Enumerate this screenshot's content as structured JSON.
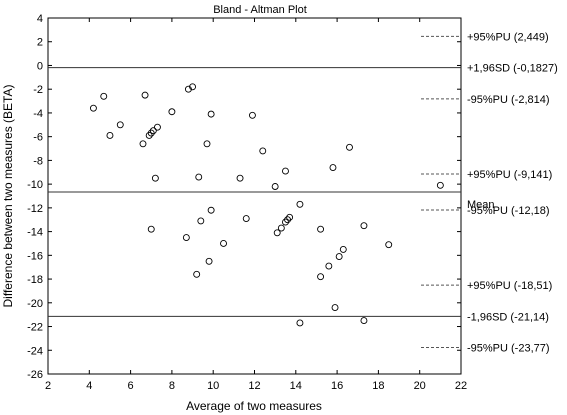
{
  "chart_data": {
    "type": "scatter",
    "title": "Bland - Altman Plot",
    "xlabel": "Average of two measures",
    "ylabel": "Difference between two measures (BETA)",
    "xlim": [
      2,
      22
    ],
    "ylim": [
      -26,
      4
    ],
    "xticks": [
      2,
      4,
      6,
      8,
      10,
      12,
      14,
      16,
      18,
      20,
      22
    ],
    "yticks": [
      4,
      2,
      0,
      -2,
      -4,
      -6,
      -8,
      -10,
      -12,
      -14,
      -16,
      -18,
      -20,
      -22,
      -24,
      -26
    ],
    "grid": false,
    "points": [
      {
        "x": 4.2,
        "y": -3.6
      },
      {
        "x": 4.7,
        "y": -2.6
      },
      {
        "x": 5.0,
        "y": -5.9
      },
      {
        "x": 5.5,
        "y": -5.0
      },
      {
        "x": 6.7,
        "y": -2.5
      },
      {
        "x": 6.6,
        "y": -6.6
      },
      {
        "x": 6.9,
        "y": -5.9
      },
      {
        "x": 7.0,
        "y": -5.7
      },
      {
        "x": 7.1,
        "y": -5.5
      },
      {
        "x": 7.3,
        "y": -5.2
      },
      {
        "x": 7.2,
        "y": -9.5
      },
      {
        "x": 7.0,
        "y": -13.8
      },
      {
        "x": 8.0,
        "y": -3.9
      },
      {
        "x": 8.8,
        "y": -2.0
      },
      {
        "x": 9.0,
        "y": -1.8
      },
      {
        "x": 9.3,
        "y": -9.4
      },
      {
        "x": 9.7,
        "y": -6.6
      },
      {
        "x": 9.9,
        "y": -4.1
      },
      {
        "x": 8.7,
        "y": -14.5
      },
      {
        "x": 9.4,
        "y": -13.1
      },
      {
        "x": 9.2,
        "y": -17.6
      },
      {
        "x": 9.8,
        "y": -16.5
      },
      {
        "x": 9.9,
        "y": -12.2
      },
      {
        "x": 10.5,
        "y": -15.0
      },
      {
        "x": 11.3,
        "y": -9.5
      },
      {
        "x": 11.6,
        "y": -12.9
      },
      {
        "x": 11.9,
        "y": -4.2
      },
      {
        "x": 12.4,
        "y": -7.2
      },
      {
        "x": 13.0,
        "y": -10.2
      },
      {
        "x": 13.5,
        "y": -8.9
      },
      {
        "x": 13.1,
        "y": -14.1
      },
      {
        "x": 13.3,
        "y": -13.7
      },
      {
        "x": 13.5,
        "y": -13.2
      },
      {
        "x": 13.6,
        "y": -13.0
      },
      {
        "x": 13.7,
        "y": -12.8
      },
      {
        "x": 14.2,
        "y": -11.7
      },
      {
        "x": 14.2,
        "y": -21.7
      },
      {
        "x": 15.2,
        "y": -13.8
      },
      {
        "x": 15.2,
        "y": -17.8
      },
      {
        "x": 15.6,
        "y": -16.9
      },
      {
        "x": 15.8,
        "y": -8.6
      },
      {
        "x": 15.9,
        "y": -20.4
      },
      {
        "x": 16.1,
        "y": -16.1
      },
      {
        "x": 16.3,
        "y": -15.5
      },
      {
        "x": 16.6,
        "y": -6.9
      },
      {
        "x": 17.3,
        "y": -13.5
      },
      {
        "x": 17.3,
        "y": -21.5
      },
      {
        "x": 18.5,
        "y": -15.1
      },
      {
        "x": 21.0,
        "y": -10.1
      }
    ],
    "reference_lines": [
      {
        "label": "+1,96SD (-0,1827)",
        "value": -0.1827,
        "style": "solid"
      },
      {
        "label": "Mean",
        "value": -10.66,
        "style": "solid"
      },
      {
        "label": "-1,96SD (-21,14)",
        "value": -21.14,
        "style": "solid"
      },
      {
        "label": "+95%PU (2,449)",
        "value": 2.449,
        "style": "dashed"
      },
      {
        "label": "-95%PU (-2,814)",
        "value": -2.814,
        "style": "dashed"
      },
      {
        "label": "+95%PU (-9,141)",
        "value": -9.141,
        "style": "dashed"
      },
      {
        "label": "-95%PU (-12,18)",
        "value": -12.18,
        "style": "dashed"
      },
      {
        "label": "+95%PU (-18,51)",
        "value": -18.51,
        "style": "dashed"
      },
      {
        "label": "-95%PU (-23,77)",
        "value": -23.77,
        "style": "dashed"
      }
    ]
  }
}
